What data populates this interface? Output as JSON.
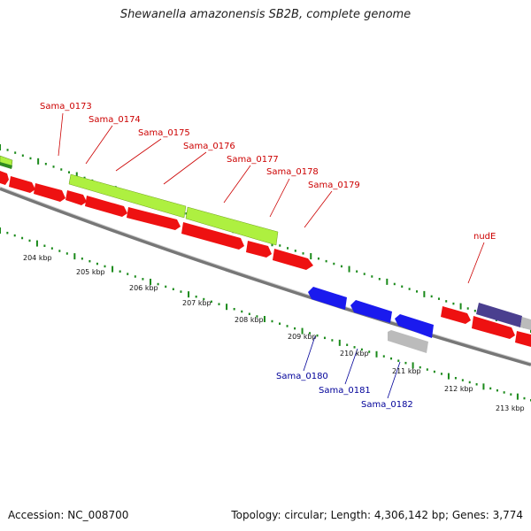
{
  "title": "Shewanella amazonensis SB2B, complete genome",
  "footer": {
    "accession": "Accession: NC_008700",
    "topology": "Topology: circular; Length: 4,306,142 bp; Genes: 3,774"
  },
  "colors": {
    "backbone": "#808080",
    "forward_gene_red": "#ee1111",
    "reverse_gene_blue": "#1a1aee",
    "grey_gene": "#bbbbbb",
    "lime_feature": "#aef040",
    "dark_green_feature": "#3a9a2a",
    "navy_feature": "#4a3f8f",
    "tick_green": "#1a8a1a",
    "label_red": "#cc0000",
    "label_blue": "#000099"
  },
  "scale_labels": [
    "204 kbp",
    "205 kbp",
    "206 kbp",
    "207 kbp",
    "208 kbp",
    "209 kbp",
    "210 kbp",
    "211 kbp",
    "212 kbp",
    "213 kbp"
  ],
  "gene_labels": {
    "forward": [
      "Sama_0173",
      "Sama_0174",
      "Sama_0175",
      "Sama_0176",
      "Sama_0177",
      "Sama_0178",
      "Sama_0179",
      "nudE"
    ],
    "reverse": [
      "Sama_0180",
      "Sama_0181",
      "Sama_0182"
    ]
  }
}
